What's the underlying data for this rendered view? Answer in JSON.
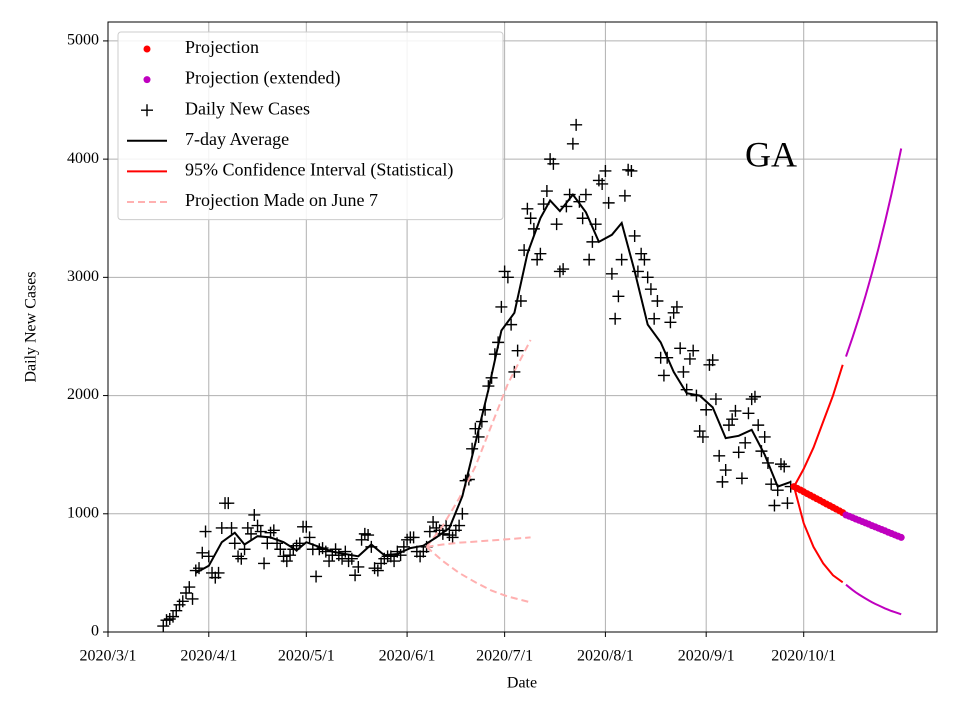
{
  "chart_data": {
    "type": "scatter-line",
    "xlabel": "Date",
    "ylabel": "Daily New Cases",
    "annotation": "GA",
    "xlim": [
      "2020-03-01",
      "2020-11-11"
    ],
    "ylim": [
      0,
      5160
    ],
    "xticks": [
      {
        "value": "2020-03-01",
        "label": "2020/3/1"
      },
      {
        "value": "2020-04-01",
        "label": "2020/4/1"
      },
      {
        "value": "2020-05-01",
        "label": "2020/5/1"
      },
      {
        "value": "2020-06-01",
        "label": "2020/6/1"
      },
      {
        "value": "2020-07-01",
        "label": "2020/7/1"
      },
      {
        "value": "2020-08-01",
        "label": "2020/8/1"
      },
      {
        "value": "2020-09-01",
        "label": "2020/9/1"
      },
      {
        "value": "2020-10-01",
        "label": "2020/10/1"
      }
    ],
    "yticks": [
      0,
      1000,
      2000,
      3000,
      4000,
      5000
    ],
    "grid": true,
    "legend": "upper left",
    "series": [
      {
        "name": "Projection",
        "color": "#ff0000",
        "marker": "o",
        "x": [
          "2020-09-28",
          "2020-09-29",
          "2020-09-30",
          "2020-10-01",
          "2020-10-02",
          "2020-10-03",
          "2020-10-04",
          "2020-10-05",
          "2020-10-06",
          "2020-10-07",
          "2020-10-08",
          "2020-10-09",
          "2020-10-10",
          "2020-10-11",
          "2020-10-12",
          "2020-10-13"
        ],
        "values": [
          1230,
          1215,
          1201,
          1186,
          1171,
          1157,
          1142,
          1127,
          1113,
          1098,
          1083,
          1069,
          1054,
          1039,
          1025,
          1010
        ]
      },
      {
        "name": "Projection (extended)",
        "color": "#bf00bf",
        "marker": "o",
        "x": [
          "2020-10-14",
          "2020-10-15",
          "2020-10-16",
          "2020-10-17",
          "2020-10-18",
          "2020-10-19",
          "2020-10-20",
          "2020-10-21",
          "2020-10-22",
          "2020-10-23",
          "2020-10-24",
          "2020-10-25",
          "2020-10-26",
          "2020-10-27",
          "2020-10-28",
          "2020-10-29",
          "2020-10-30",
          "2020-10-31"
        ],
        "values": [
          990,
          979,
          968,
          956,
          945,
          934,
          923,
          912,
          900,
          889,
          878,
          867,
          856,
          844,
          833,
          822,
          811,
          800
        ],
        "upper": [
          2330,
          2409,
          2490,
          2574,
          2661,
          2750,
          2843,
          2939,
          3038,
          3140,
          3246,
          3356,
          3469,
          3586,
          3706,
          3831,
          3961,
          4090
        ],
        "lower": [
          400,
          378,
          356,
          336,
          317,
          300,
          283,
          267,
          252,
          238,
          225,
          212,
          200,
          189,
          178,
          168,
          159,
          150
        ]
      },
      {
        "name": "Daily New Cases",
        "color": "#000000",
        "marker": "+",
        "x": [
          "2020-03-18",
          "2020-03-19",
          "2020-03-20",
          "2020-03-21",
          "2020-03-22",
          "2020-03-23",
          "2020-03-24",
          "2020-03-25",
          "2020-03-26",
          "2020-03-27",
          "2020-03-28",
          "2020-03-29",
          "2020-03-30",
          "2020-03-31",
          "2020-04-01",
          "2020-04-02",
          "2020-04-03",
          "2020-04-04",
          "2020-04-05",
          "2020-04-06",
          "2020-04-07",
          "2020-04-08",
          "2020-04-09",
          "2020-04-10",
          "2020-04-11",
          "2020-04-12",
          "2020-04-13",
          "2020-04-14",
          "2020-04-15",
          "2020-04-16",
          "2020-04-17",
          "2020-04-18",
          "2020-04-19",
          "2020-04-20",
          "2020-04-21",
          "2020-04-22",
          "2020-04-23",
          "2020-04-24",
          "2020-04-25",
          "2020-04-26",
          "2020-04-27",
          "2020-04-28",
          "2020-04-29",
          "2020-04-30",
          "2020-05-01",
          "2020-05-02",
          "2020-05-03",
          "2020-05-04",
          "2020-05-05",
          "2020-05-06",
          "2020-05-07",
          "2020-05-08",
          "2020-05-09",
          "2020-05-10",
          "2020-05-11",
          "2020-05-12",
          "2020-05-13",
          "2020-05-14",
          "2020-05-15",
          "2020-05-16",
          "2020-05-17",
          "2020-05-18",
          "2020-05-19",
          "2020-05-20",
          "2020-05-21",
          "2020-05-22",
          "2020-05-23",
          "2020-05-24",
          "2020-05-25",
          "2020-05-26",
          "2020-05-27",
          "2020-05-28",
          "2020-05-29",
          "2020-05-30",
          "2020-05-31",
          "2020-06-01",
          "2020-06-02",
          "2020-06-03",
          "2020-06-04",
          "2020-06-05",
          "2020-06-06",
          "2020-06-07",
          "2020-06-08",
          "2020-06-09",
          "2020-06-10",
          "2020-06-11",
          "2020-06-12",
          "2020-06-13",
          "2020-06-14",
          "2020-06-15",
          "2020-06-16",
          "2020-06-17",
          "2020-06-18",
          "2020-06-19",
          "2020-06-20",
          "2020-06-21",
          "2020-06-22",
          "2020-06-23",
          "2020-06-24",
          "2020-06-25",
          "2020-06-26",
          "2020-06-27",
          "2020-06-28",
          "2020-06-29",
          "2020-06-30",
          "2020-07-01",
          "2020-07-02",
          "2020-07-03",
          "2020-07-04",
          "2020-07-05",
          "2020-07-06",
          "2020-07-07",
          "2020-07-08",
          "2020-07-09",
          "2020-07-10",
          "2020-07-11",
          "2020-07-12",
          "2020-07-13",
          "2020-07-14",
          "2020-07-15",
          "2020-07-16",
          "2020-07-17",
          "2020-07-18",
          "2020-07-19",
          "2020-07-20",
          "2020-07-21",
          "2020-07-22",
          "2020-07-23",
          "2020-07-24",
          "2020-07-25",
          "2020-07-26",
          "2020-07-27",
          "2020-07-28",
          "2020-07-29",
          "2020-07-30",
          "2020-07-31",
          "2020-08-01",
          "2020-08-02",
          "2020-08-03",
          "2020-08-04",
          "2020-08-05",
          "2020-08-06",
          "2020-08-07",
          "2020-08-08",
          "2020-08-09",
          "2020-08-10",
          "2020-08-11",
          "2020-08-12",
          "2020-08-13",
          "2020-08-14",
          "2020-08-15",
          "2020-08-16",
          "2020-08-17",
          "2020-08-18",
          "2020-08-19",
          "2020-08-20",
          "2020-08-21",
          "2020-08-22",
          "2020-08-23",
          "2020-08-24",
          "2020-08-25",
          "2020-08-26",
          "2020-08-27",
          "2020-08-28",
          "2020-08-29",
          "2020-08-30",
          "2020-08-31",
          "2020-09-01",
          "2020-09-02",
          "2020-09-03",
          "2020-09-04",
          "2020-09-05",
          "2020-09-06",
          "2020-09-07",
          "2020-09-08",
          "2020-09-09",
          "2020-09-10",
          "2020-09-11",
          "2020-09-12",
          "2020-09-13",
          "2020-09-14",
          "2020-09-15",
          "2020-09-16",
          "2020-09-17",
          "2020-09-18",
          "2020-09-19",
          "2020-09-20",
          "2020-09-21",
          "2020-09-22",
          "2020-09-23",
          "2020-09-24",
          "2020-09-25",
          "2020-09-26",
          "2020-09-27"
        ],
        "values": [
          50,
          100,
          110,
          130,
          180,
          230,
          260,
          330,
          380,
          280,
          520,
          540,
          670,
          850,
          640,
          500,
          460,
          500,
          880,
          1090,
          1090,
          880,
          750,
          640,
          620,
          700,
          880,
          830,
          990,
          900,
          850,
          580,
          750,
          840,
          860,
          750,
          700,
          640,
          600,
          650,
          700,
          730,
          750,
          890,
          890,
          800,
          700,
          470,
          700,
          710,
          680,
          600,
          650,
          700,
          650,
          620,
          680,
          600,
          620,
          480,
          550,
          780,
          830,
          820,
          720,
          540,
          520,
          580,
          620,
          640,
          640,
          600,
          680,
          650,
          720,
          780,
          800,
          800,
          680,
          640,
          680,
          720,
          850,
          930,
          880,
          860,
          830,
          900,
          820,
          800,
          860,
          900,
          1000,
          1280,
          1290,
          1550,
          1720,
          1650,
          1780,
          1880,
          2080,
          2150,
          2350,
          2450,
          2750,
          3050,
          3000,
          2600,
          2200,
          2380,
          2800,
          3230,
          3580,
          3500,
          3410,
          3150,
          3200,
          3620,
          3730,
          4000,
          3960,
          3450,
          3050,
          3070,
          3600,
          3700,
          4130,
          4290,
          3640,
          3500,
          3700,
          3150,
          3300,
          3450,
          3820,
          3790,
          3900,
          3630,
          3030,
          2650,
          2840,
          3150,
          3690,
          3910,
          3900,
          3350,
          3050,
          3200,
          3150,
          3000,
          2900,
          2650,
          2800,
          2320,
          2170,
          2320,
          2620,
          2700,
          2750,
          2400,
          2200,
          2050,
          2310,
          2380,
          2000,
          1700,
          1650,
          1880,
          2260,
          2300,
          1970,
          1490,
          1270,
          1370,
          1750,
          1800,
          1870,
          1520,
          1300,
          1600,
          1850,
          1970,
          1990,
          1750,
          1530,
          1650,
          1430,
          1250,
          1070,
          1200,
          1420,
          1400,
          1090,
          1230
        ]
      },
      {
        "name": "7-day Average",
        "color": "#000000",
        "linestyle": "-",
        "x": [
          "2020-03-28",
          "2020-04-01",
          "2020-04-05",
          "2020-04-09",
          "2020-04-12",
          "2020-04-16",
          "2020-04-20",
          "2020-04-24",
          "2020-04-28",
          "2020-05-01",
          "2020-05-05",
          "2020-05-09",
          "2020-05-13",
          "2020-05-17",
          "2020-05-21",
          "2020-05-25",
          "2020-05-29",
          "2020-06-02",
          "2020-06-06",
          "2020-06-10",
          "2020-06-14",
          "2020-06-18",
          "2020-06-22",
          "2020-06-26",
          "2020-06-30",
          "2020-07-04",
          "2020-07-08",
          "2020-07-12",
          "2020-07-15",
          "2020-07-18",
          "2020-07-22",
          "2020-07-26",
          "2020-07-30",
          "2020-08-03",
          "2020-08-06",
          "2020-08-10",
          "2020-08-14",
          "2020-08-18",
          "2020-08-22",
          "2020-08-26",
          "2020-08-30",
          "2020-09-03",
          "2020-09-07",
          "2020-09-11",
          "2020-09-15",
          "2020-09-19",
          "2020-09-23",
          "2020-09-27"
        ],
        "values": [
          500,
          560,
          760,
          840,
          740,
          810,
          800,
          760,
          690,
          760,
          720,
          680,
          660,
          640,
          740,
          650,
          660,
          710,
          730,
          800,
          880,
          1150,
          1600,
          2050,
          2550,
          2700,
          3200,
          3500,
          3650,
          3560,
          3700,
          3550,
          3300,
          3360,
          3460,
          3050,
          2600,
          2450,
          2200,
          2020,
          2000,
          1900,
          1640,
          1660,
          1710,
          1500,
          1230,
          1270
        ]
      },
      {
        "name": "95% Confidence Interval (Statistical)",
        "color": "#ff0000",
        "linestyle": "-",
        "x": [
          "2020-09-28",
          "2020-10-01",
          "2020-10-04",
          "2020-10-07",
          "2020-10-10",
          "2020-10-13"
        ],
        "upper": [
          1230,
          1380,
          1560,
          1780,
          2000,
          2260
        ],
        "lower": [
          1230,
          920,
          720,
          580,
          480,
          420
        ]
      },
      {
        "name": "Projection Made on June 7",
        "color": "#ffb0b0",
        "linestyle": "--",
        "x": [
          "2020-06-07",
          "2020-06-12",
          "2020-06-17",
          "2020-06-22",
          "2020-06-27",
          "2020-07-02",
          "2020-07-09"
        ],
        "values": [
          720,
          740,
          755,
          765,
          775,
          785,
          800
        ],
        "upper": [
          720,
          900,
          1130,
          1400,
          1750,
          2100,
          2470
        ],
        "lower": [
          720,
          600,
          500,
          420,
          350,
          300,
          250
        ]
      }
    ]
  }
}
